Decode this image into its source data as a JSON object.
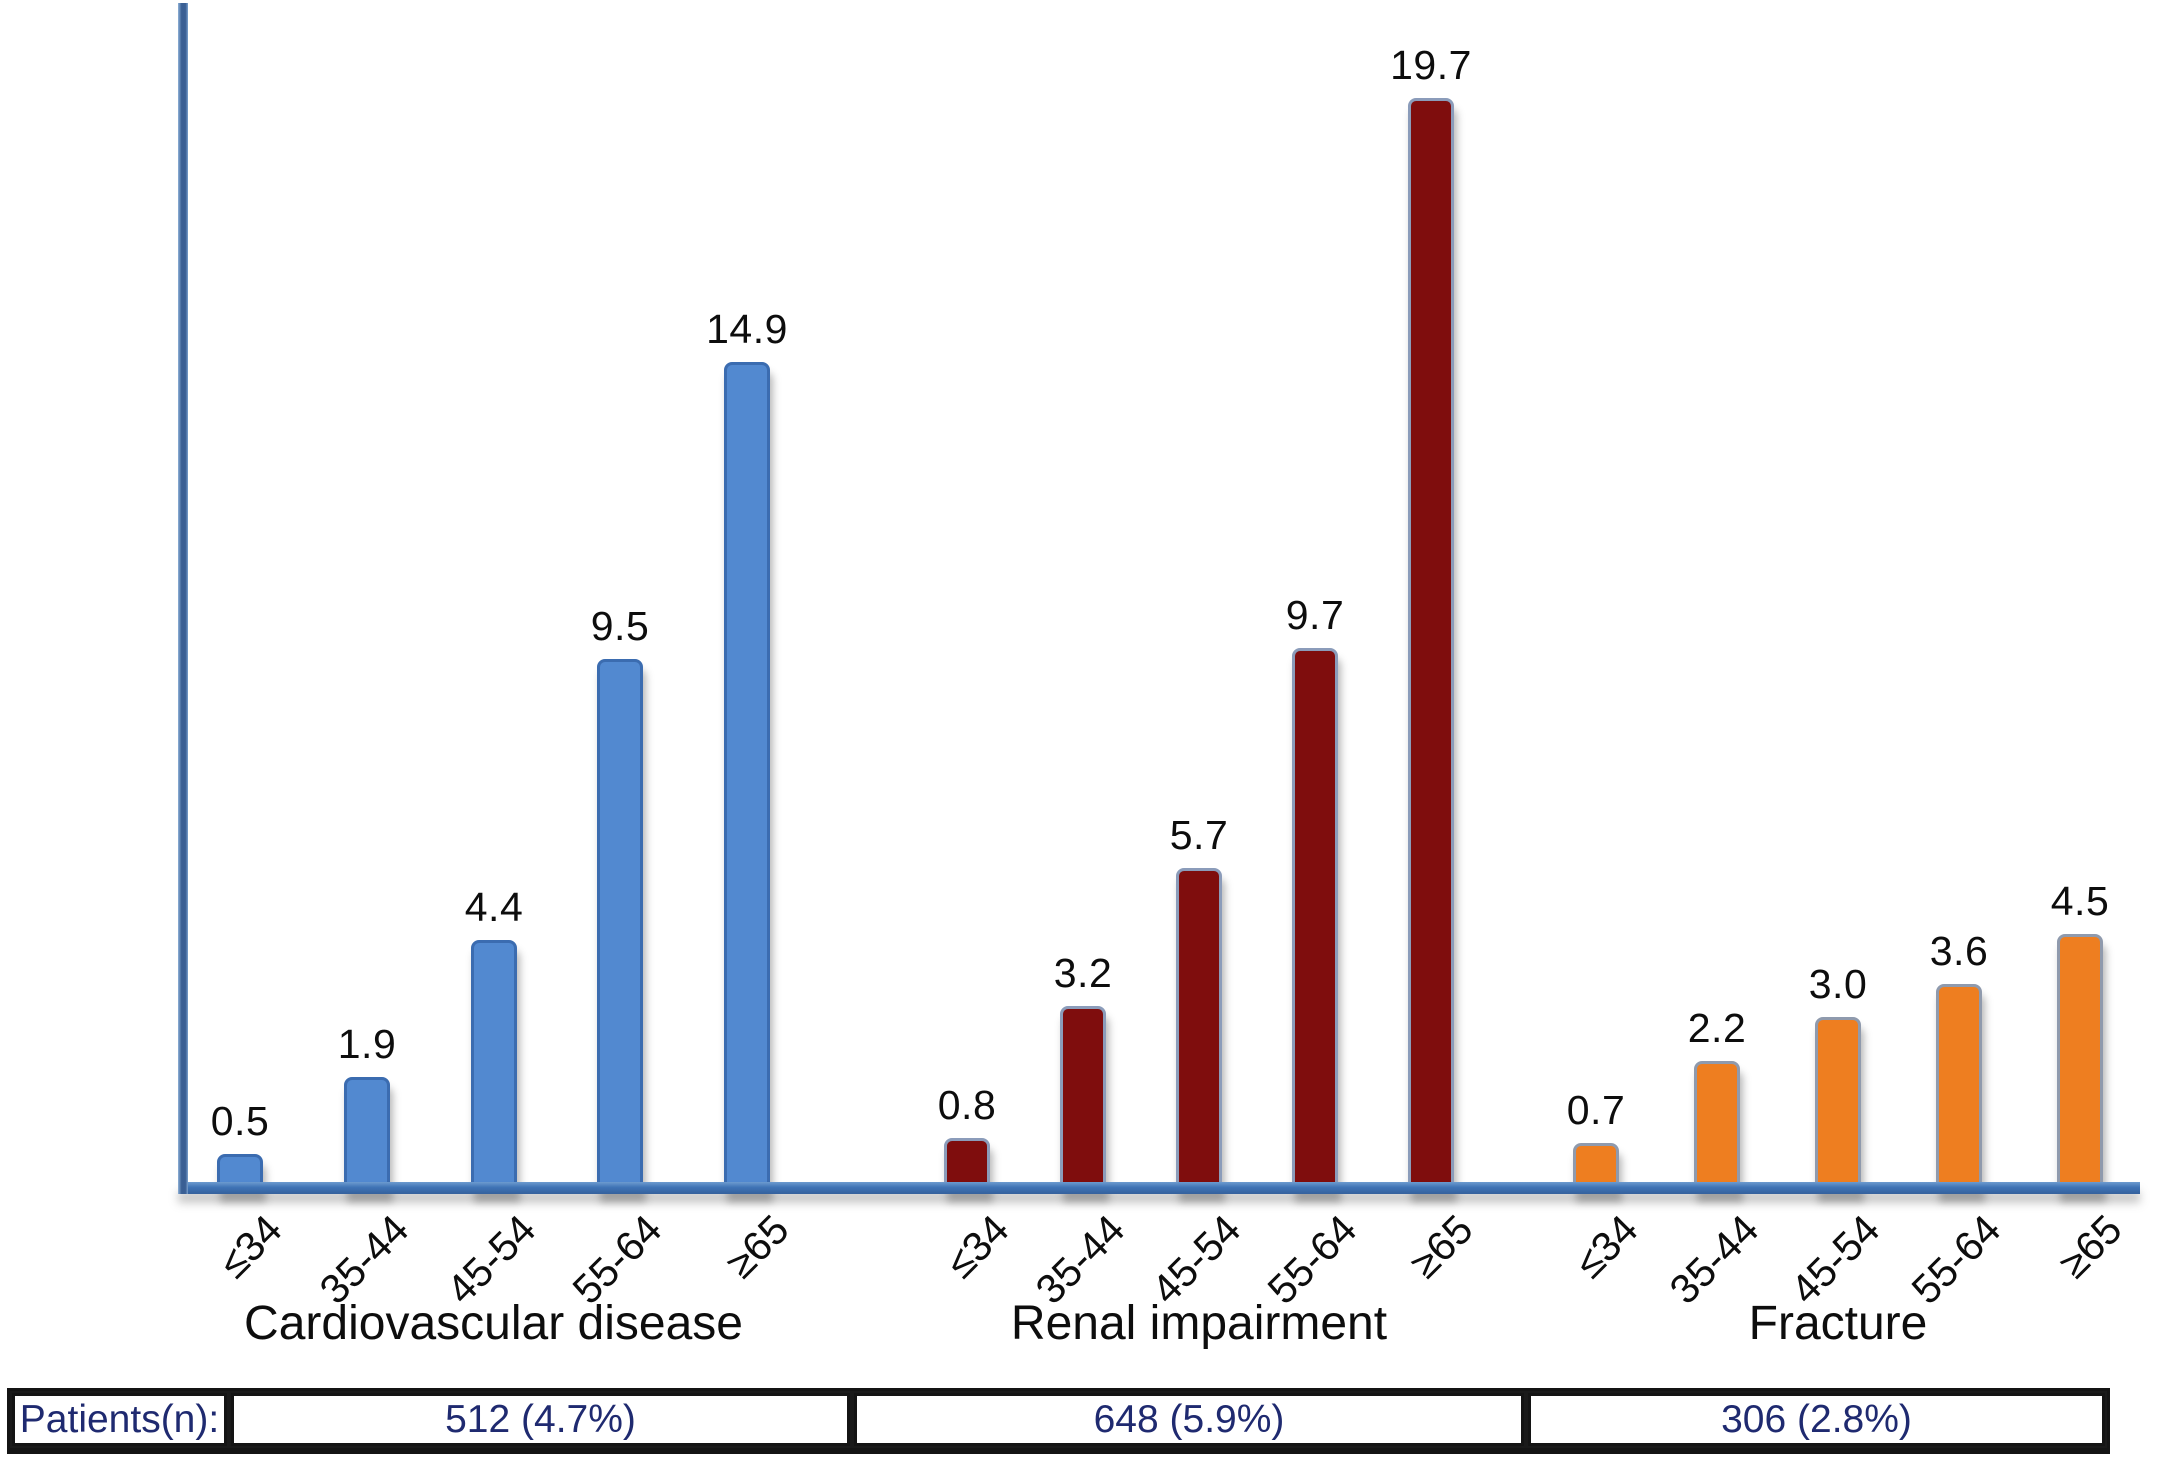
{
  "chart_data": {
    "type": "bar",
    "categories": [
      "≤34",
      "35-44",
      "45-54",
      "55-64",
      "≥65"
    ],
    "series": [
      {
        "name": "Cardiovascular disease",
        "values": [
          0.5,
          1.9,
          4.4,
          9.5,
          14.9
        ],
        "value_labels": [
          "0.5",
          "1.9",
          "4.4",
          "9.5",
          "14.9"
        ],
        "color": "#5289d0",
        "border_color": "#3b6cb0",
        "patients": "512 (4.7%)"
      },
      {
        "name": "Renal impairment",
        "values": [
          0.8,
          3.2,
          5.7,
          9.7,
          19.7
        ],
        "value_labels": [
          "0.8",
          "3.2",
          "5.7",
          "9.7",
          "19.7"
        ],
        "color": "#7f0d0d",
        "border_color": "#8b9cba",
        "patients": "648 (5.9%)"
      },
      {
        "name": "Fracture",
        "values": [
          0.7,
          2.2,
          3.0,
          3.6,
          4.5
        ],
        "value_labels": [
          "0.7",
          "2.2",
          "3.0",
          "3.6",
          "4.5"
        ],
        "color": "#ee7e20",
        "border_color": "#8f9aad",
        "patients": "306 (2.8%)"
      }
    ],
    "ylim": [
      0,
      20
    ],
    "grid": false,
    "legend": false,
    "axis_color": "#3f73b5",
    "table": {
      "row_label": "Patients(n):",
      "cells": [
        "512 (4.7%)",
        "648 (5.9%)",
        "306 (2.8%)"
      ],
      "text_color": "#1f2a70"
    }
  }
}
